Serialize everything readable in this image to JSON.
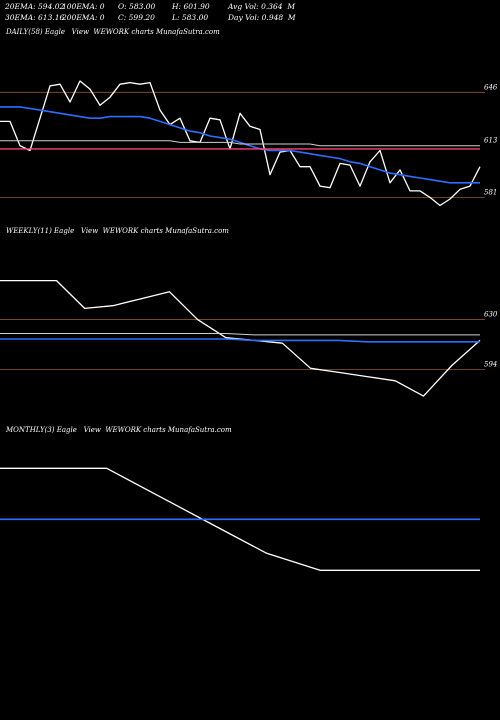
{
  "header": {
    "row1": {
      "ema20": "20EMA: 594.02",
      "ema100": "100EMA: 0",
      "open": "O: 583.00",
      "high": "H: 601.90",
      "avg_vol": "Avg Vol: 0.364  M"
    },
    "row2": {
      "ema30": "30EMA: 613.16",
      "ema200": "200EMA: 0",
      "close": "C: 599.20",
      "low": "L: 583.00",
      "day_vol": "Day Vol: 0.948  M"
    }
  },
  "panels": {
    "daily_label": "DAILY(58) Eagle   View  WEWORK charts MunafaSutra.com",
    "weekly_label": "WEEKLY(11) Eagle   View  WEWORK charts MunafaSutra.com",
    "monthly_label": "MONTHLY(3) Eagle   View  WEWORK charts MunafaSutra.com"
  },
  "chart_data": [
    {
      "type": "line",
      "name": "daily",
      "y_tick_labels": [
        "646",
        "613",
        "581"
      ],
      "y_ticks": [
        646,
        613,
        581
      ],
      "ylim": [
        567,
        666
      ],
      "colors": {
        "price": "#ffffff",
        "ema_fast": "#2a6fff",
        "ema_slow": "#cfcfcf",
        "support": "#ff4070",
        "level_line": "#8a5a2a"
      },
      "series": [
        {
          "key": "price",
          "values": [
            628,
            628,
            613,
            610,
            630,
            650,
            651,
            640,
            653,
            648,
            638,
            643,
            651,
            652,
            651,
            652,
            635,
            626,
            630,
            616,
            615,
            630,
            629,
            611,
            633,
            625,
            623,
            595,
            609,
            610,
            600,
            600,
            588,
            587,
            602,
            601,
            588,
            603,
            610,
            590,
            598,
            585,
            585,
            581,
            576,
            580,
            586,
            588,
            600
          ]
        },
        {
          "key": "ema_fast",
          "values": [
            637,
            637,
            637,
            636,
            635,
            634,
            633,
            632,
            631,
            630,
            630,
            631,
            631,
            631,
            631,
            630,
            628,
            626,
            624,
            622,
            621,
            619,
            618,
            617,
            615,
            613,
            611,
            610,
            610,
            610,
            609,
            608,
            607,
            606,
            605,
            603,
            602,
            600,
            598,
            596,
            595,
            594,
            593,
            592,
            591,
            590,
            590,
            590,
            590
          ]
        },
        {
          "key": "ema_slow",
          "values": [
            616,
            616,
            616,
            616,
            616,
            616,
            616,
            616,
            616,
            616,
            616,
            616,
            616,
            616,
            616,
            616,
            616,
            616,
            615,
            615,
            615,
            615,
            615,
            615,
            614,
            614,
            614,
            614,
            614,
            614,
            614,
            614,
            613,
            613,
            613,
            613,
            613,
            613,
            613,
            613,
            613,
            613,
            613,
            613,
            613,
            613,
            613,
            613,
            613
          ]
        },
        {
          "key": "support",
          "values": [
            611,
            611,
            611,
            611,
            611,
            611,
            611,
            611,
            611,
            611,
            611,
            611,
            611,
            611,
            611,
            611,
            611,
            611,
            611,
            611,
            611,
            611,
            611,
            611,
            611,
            611,
            611,
            611,
            611,
            611,
            611,
            611,
            611,
            611,
            611,
            611,
            611,
            611,
            611,
            611,
            611,
            611,
            611,
            611,
            611,
            611,
            611,
            611,
            611
          ]
        }
      ],
      "levels": [
        646,
        581
      ]
    },
    {
      "type": "line",
      "name": "weekly",
      "y_tick_labels": [
        "630",
        "594"
      ],
      "y_ticks": [
        630,
        594
      ],
      "ylim": [
        565,
        680
      ],
      "colors": {
        "price": "#ffffff",
        "ema_fast": "#2a6fff",
        "ema_slow": "#cfcfcf",
        "level_line": "#8a5a2a"
      },
      "series": [
        {
          "key": "price",
          "values": [
            658,
            658,
            658,
            638,
            640,
            645,
            650,
            630,
            617,
            615,
            613,
            595,
            592,
            589,
            586,
            575,
            597,
            615
          ]
        },
        {
          "key": "ema_fast",
          "values": [
            616,
            616,
            616,
            616,
            616,
            616,
            616,
            616,
            616,
            615,
            615,
            615,
            615,
            614,
            614,
            614,
            614,
            614
          ]
        },
        {
          "key": "ema_slow",
          "values": [
            620,
            620,
            620,
            620,
            620,
            620,
            620,
            620,
            620,
            619,
            619,
            619,
            619,
            619,
            619,
            619,
            619,
            619
          ]
        }
      ],
      "levels": [
        630,
        594
      ]
    },
    {
      "type": "line",
      "name": "monthly",
      "y_tick_labels": [],
      "ylim": [
        560,
        680
      ],
      "colors": {
        "price": "#ffffff",
        "ema_fast": "#2a6fff"
      },
      "series": [
        {
          "key": "price",
          "values": [
            660,
            660,
            660,
            640,
            620,
            600,
            588,
            588,
            588,
            588
          ]
        },
        {
          "key": "ema_fast",
          "values": [
            624,
            624,
            624,
            624,
            624,
            624,
            624,
            624,
            624,
            624
          ]
        }
      ]
    }
  ]
}
